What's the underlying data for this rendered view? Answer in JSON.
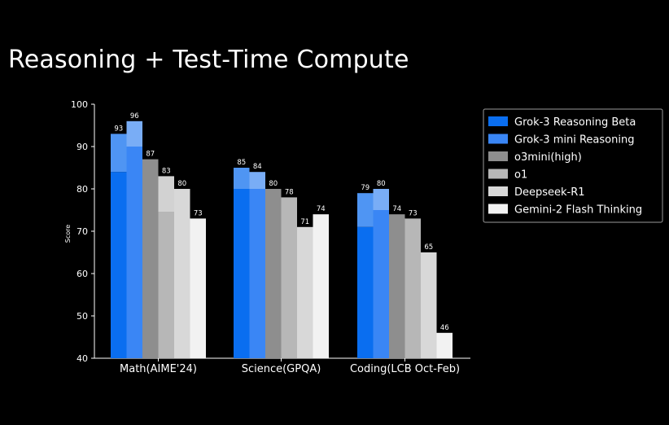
{
  "page_title": "Reasoning + Test-Time Compute",
  "chart_data": {
    "type": "bar",
    "title": "",
    "xlabel": "",
    "ylabel": "Score",
    "ylim": [
      40,
      100
    ],
    "yticks": [
      40,
      50,
      60,
      70,
      80,
      90,
      100
    ],
    "categories": [
      "Math(AIME'24)",
      "Science(GPQA)",
      "Coding(LCB Oct-Feb)"
    ],
    "legend_position": "top-right",
    "grid": false,
    "series": [
      {
        "name": "Grok-3 Reasoning Beta",
        "values": [
          93,
          85,
          79
        ],
        "base_values": [
          84,
          80,
          71
        ],
        "color": "#0a6ef0",
        "top_color": "#4f95f3"
      },
      {
        "name": "Grok-3 mini Reasoning",
        "values": [
          96,
          84,
          80
        ],
        "base_values": [
          90,
          80,
          75
        ],
        "color": "#3a86f5",
        "top_color": "#79adf6"
      },
      {
        "name": "o3mini(high)",
        "values": [
          87,
          80,
          74
        ],
        "color": "#8e8e8e"
      },
      {
        "name": "o1",
        "values": [
          83,
          78,
          73
        ],
        "base_values": [
          74.5,
          null,
          null
        ],
        "color": "#b7b7b7",
        "top_color": "#d2d2d2"
      },
      {
        "name": "Deepseek-R1",
        "values": [
          80,
          71,
          65
        ],
        "color": "#d8d8d8"
      },
      {
        "name": "Gemini-2 Flash Thinking",
        "values": [
          73,
          74,
          46
        ],
        "color": "#f2f2f2"
      }
    ]
  }
}
